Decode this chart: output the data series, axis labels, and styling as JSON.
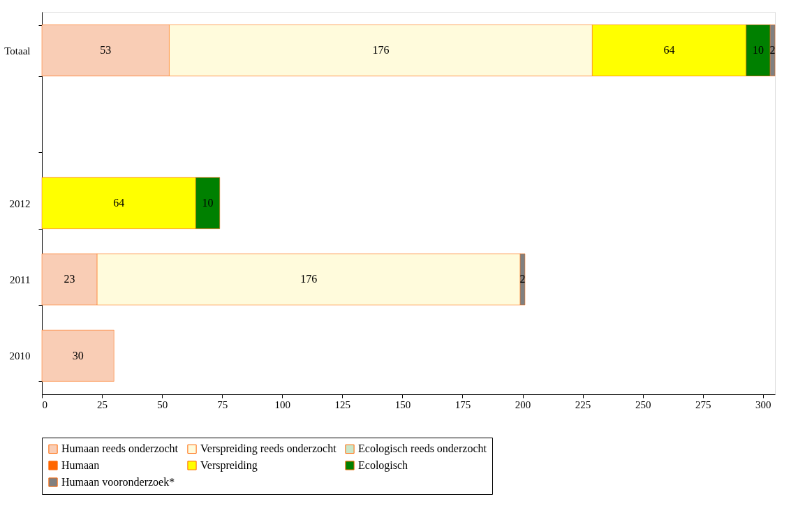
{
  "chart_data": {
    "type": "bar",
    "orientation": "horizontal",
    "stacked": true,
    "data_labels": true,
    "legend": "bottom",
    "grid": false,
    "categories": [
      "Totaal",
      null,
      "2012",
      "2011",
      "2010"
    ],
    "xlim": [
      0,
      305
    ],
    "xticks": [
      0,
      25,
      50,
      75,
      100,
      125,
      150,
      175,
      200,
      225,
      250,
      275,
      300
    ],
    "series": [
      {
        "name": "Humaan reeds onderzocht",
        "color": "#f9cdb5",
        "values": [
          53,
          null,
          null,
          23,
          30
        ]
      },
      {
        "name": "Verspreiding reeds onderzocht",
        "color": "#fffbdc",
        "values": [
          176,
          null,
          null,
          176,
          null
        ]
      },
      {
        "name": "Ecologisch reeds onderzocht",
        "color": "#c9e6c9",
        "values": [
          null,
          null,
          null,
          null,
          null
        ]
      },
      {
        "name": "Humaan",
        "color": "#ff6600",
        "values": [
          null,
          null,
          null,
          null,
          null
        ]
      },
      {
        "name": "Verspreiding",
        "color": "#ffff00",
        "values": [
          64,
          null,
          64,
          null,
          null
        ]
      },
      {
        "name": "Ecologisch",
        "color": "#008000",
        "values": [
          10,
          null,
          10,
          null,
          null
        ]
      },
      {
        "name": "Humaan vooronderzoek*",
        "color": "#808080",
        "values": [
          2,
          null,
          null,
          2,
          null
        ]
      }
    ]
  }
}
